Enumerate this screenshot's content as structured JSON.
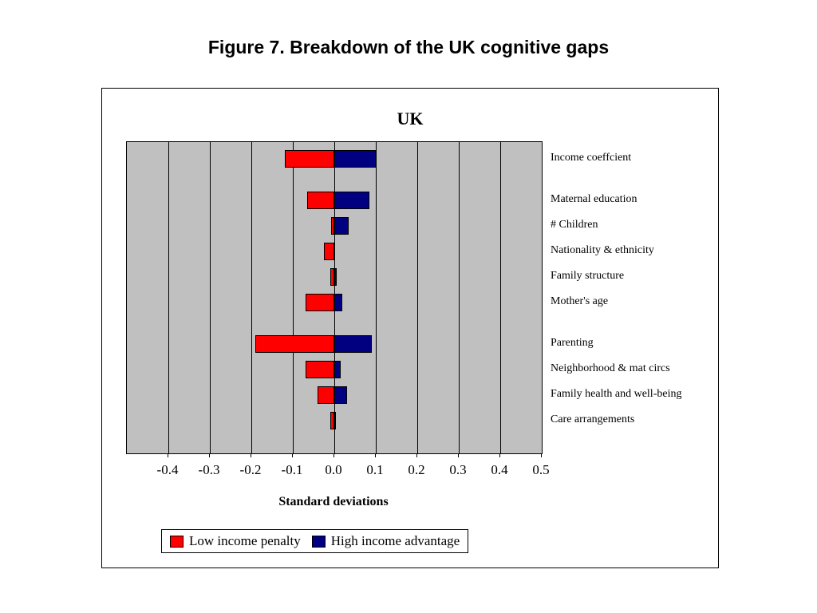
{
  "figure_title": "Figure 7. Breakdown of the UK cognitive gaps",
  "chart": {
    "title": "UK",
    "type": "bar-horizontal-diverging",
    "xlabel": "Standard deviations",
    "xlim": [
      -0.5,
      0.5
    ],
    "xticks": [
      -0.4,
      -0.3,
      -0.2,
      -0.1,
      0.0,
      0.1,
      0.2,
      0.3,
      0.4,
      0.5
    ],
    "xtick_labels": [
      "-0.4",
      "-0.3",
      "-0.2",
      "-0.1",
      "0.0",
      "0.1",
      "0.2",
      "0.3",
      "0.4",
      "0.5"
    ],
    "plot_background": "#c0c0c0",
    "grid_color": "#000000",
    "series": [
      {
        "name": "Low income penalty",
        "color": "#ff0000"
      },
      {
        "name": "High income advantage",
        "color": "#000080"
      }
    ],
    "rows": [
      {
        "label": "Income coeffcient",
        "low": -0.12,
        "high": 0.1,
        "gap_after": true
      },
      {
        "label": "Maternal education",
        "low": -0.065,
        "high": 0.085,
        "gap_after": false
      },
      {
        "label": "# Children",
        "low": -0.008,
        "high": 0.035,
        "gap_after": false
      },
      {
        "label": "Nationality & ethnicity",
        "low": -0.025,
        "high": 0.0,
        "gap_after": false
      },
      {
        "label": "Family structure",
        "low": -0.01,
        "high": 0.005,
        "gap_after": false
      },
      {
        "label": "Mother's age",
        "low": -0.07,
        "high": 0.02,
        "gap_after": true
      },
      {
        "label": "Parenting",
        "low": -0.19,
        "high": 0.09,
        "gap_after": false
      },
      {
        "label": "Neighborhood & mat circs",
        "low": -0.07,
        "high": 0.015,
        "gap_after": false
      },
      {
        "label": "Family health and well-being",
        "low": -0.04,
        "high": 0.03,
        "gap_after": false
      },
      {
        "label": "Care arrangements",
        "low": -0.01,
        "high": 0.003,
        "gap_after": false
      }
    ],
    "legend": [
      {
        "label": "Low income penalty",
        "color": "#ff0000"
      },
      {
        "label": "High income advantage",
        "color": "#000080"
      }
    ],
    "title_fontsize": 22,
    "label_fontsize": 14,
    "tick_fontsize": 17
  }
}
